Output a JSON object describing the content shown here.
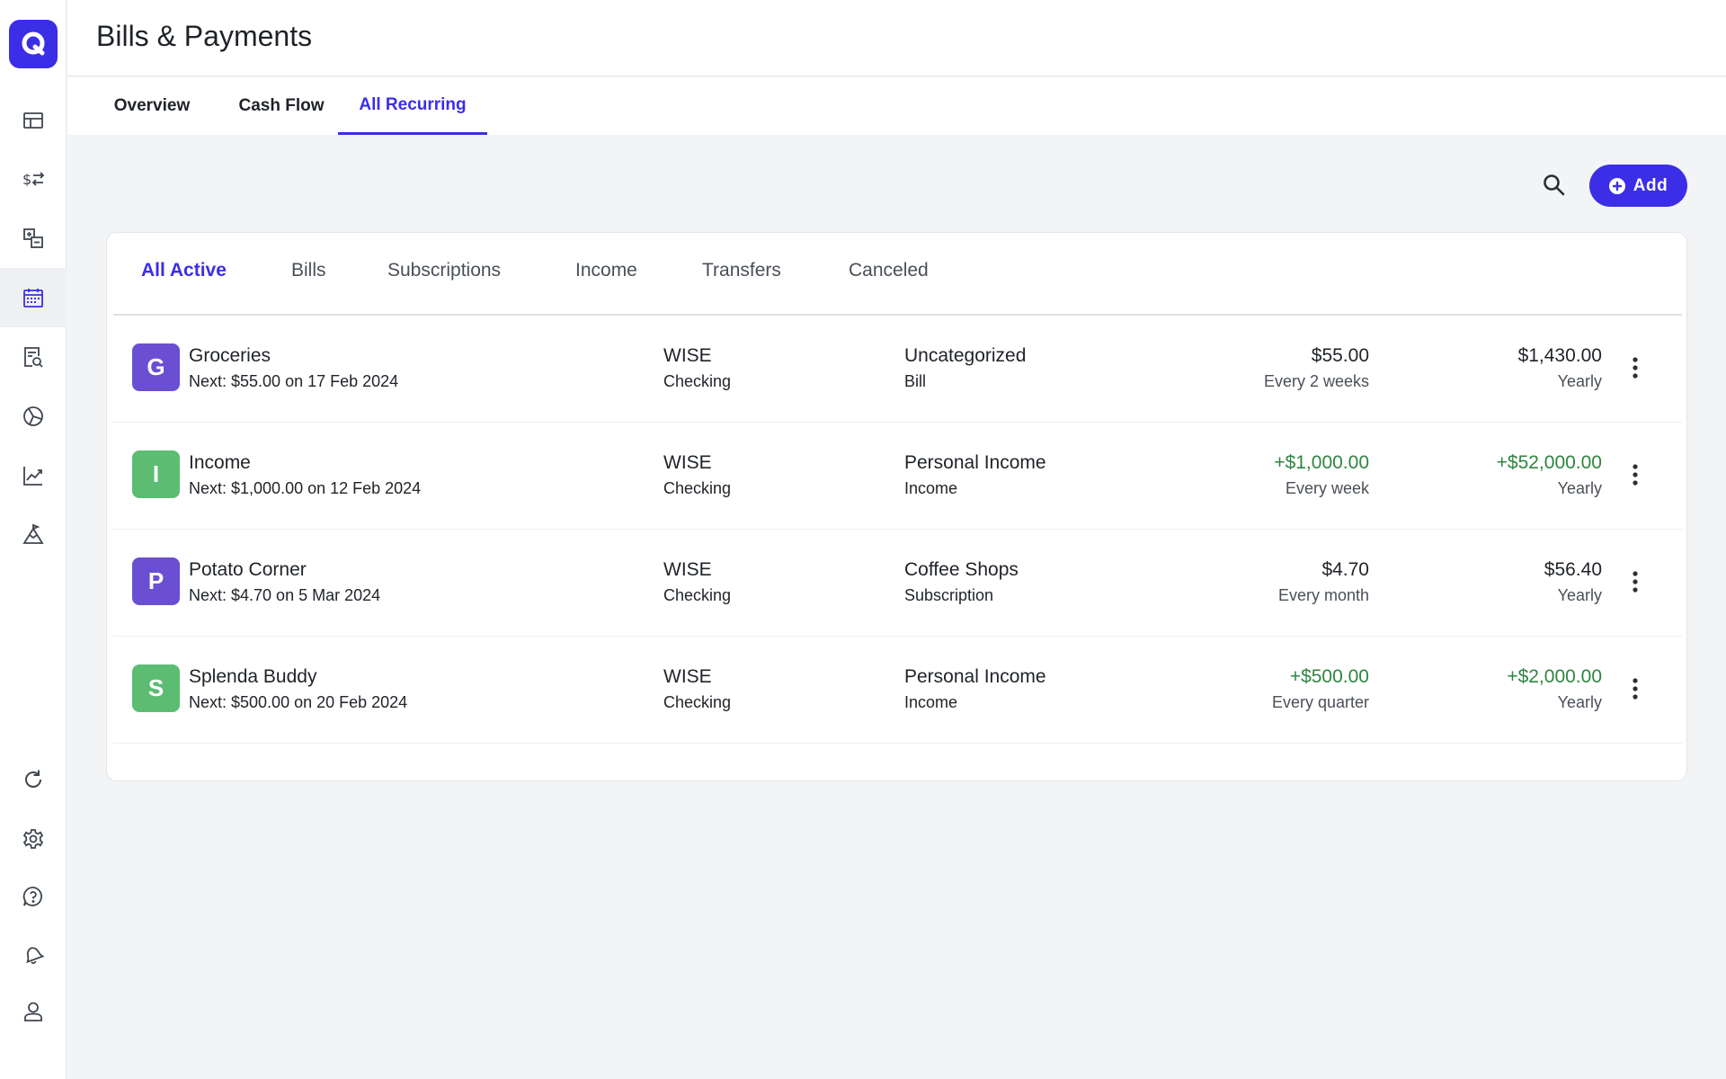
{
  "app": {
    "title": "Bills & Payments"
  },
  "sidebar": {
    "top_items": [
      {
        "icon": "dashboard-icon"
      },
      {
        "icon": "transactions-icon"
      },
      {
        "icon": "accounts-icon"
      },
      {
        "icon": "calendar-icon",
        "active": true
      },
      {
        "icon": "reports-icon"
      },
      {
        "icon": "budget-pie-icon"
      },
      {
        "icon": "investments-chart-icon"
      },
      {
        "icon": "goals-icon"
      }
    ],
    "bottom_items": [
      {
        "icon": "refresh-icon"
      },
      {
        "icon": "settings-gear-icon"
      },
      {
        "icon": "help-icon"
      },
      {
        "icon": "notifications-icon"
      },
      {
        "icon": "profile-icon"
      }
    ]
  },
  "top_tabs": [
    {
      "label": "Overview"
    },
    {
      "label": "Cash Flow"
    },
    {
      "label": "All Recurring",
      "active": true
    }
  ],
  "toolbar": {
    "add_label": "Add",
    "search_icon": "search-icon"
  },
  "filter_tabs": [
    {
      "label": "All Active",
      "active": true
    },
    {
      "label": "Bills"
    },
    {
      "label": "Subscriptions"
    },
    {
      "label": "Income"
    },
    {
      "label": "Transfers"
    },
    {
      "label": "Canceled"
    }
  ],
  "recurring": [
    {
      "initial": "G",
      "color": "#6a4fd3",
      "name": "Groceries",
      "next": "Next: $55.00 on 17 Feb 2024",
      "account": "WISE",
      "account_type": "Checking",
      "category": "Uncategorized",
      "kind": "Bill",
      "amount": "$55.00",
      "frequency": "Every 2 weeks",
      "yearly": "$1,430.00",
      "yearly_label": "Yearly",
      "positive": false
    },
    {
      "initial": "I",
      "color": "#5cbd72",
      "name": "Income",
      "next": "Next: $1,000.00 on 12 Feb 2024",
      "account": "WISE",
      "account_type": "Checking",
      "category": "Personal Income",
      "kind": "Income",
      "amount": "+$1,000.00",
      "frequency": "Every week",
      "yearly": "+$52,000.00",
      "yearly_label": "Yearly",
      "positive": true
    },
    {
      "initial": "P",
      "color": "#6a4fd3",
      "name": "Potato Corner",
      "next": "Next: $4.70 on 5 Mar 2024",
      "account": "WISE",
      "account_type": "Checking",
      "category": "Coffee Shops",
      "kind": "Subscription",
      "amount": "$4.70",
      "frequency": "Every month",
      "yearly": "$56.40",
      "yearly_label": "Yearly",
      "positive": false
    },
    {
      "initial": "S",
      "color": "#5cbd72",
      "name": "Splenda Buddy",
      "next": "Next: $500.00 on 20 Feb 2024",
      "account": "WISE",
      "account_type": "Checking",
      "category": "Personal Income",
      "kind": "Income",
      "amount": "+$500.00",
      "frequency": "Every quarter",
      "yearly": "+$2,000.00",
      "yearly_label": "Yearly",
      "positive": true
    }
  ],
  "colors": {
    "accent": "#3b2ee6",
    "positive": "#2e8540"
  }
}
